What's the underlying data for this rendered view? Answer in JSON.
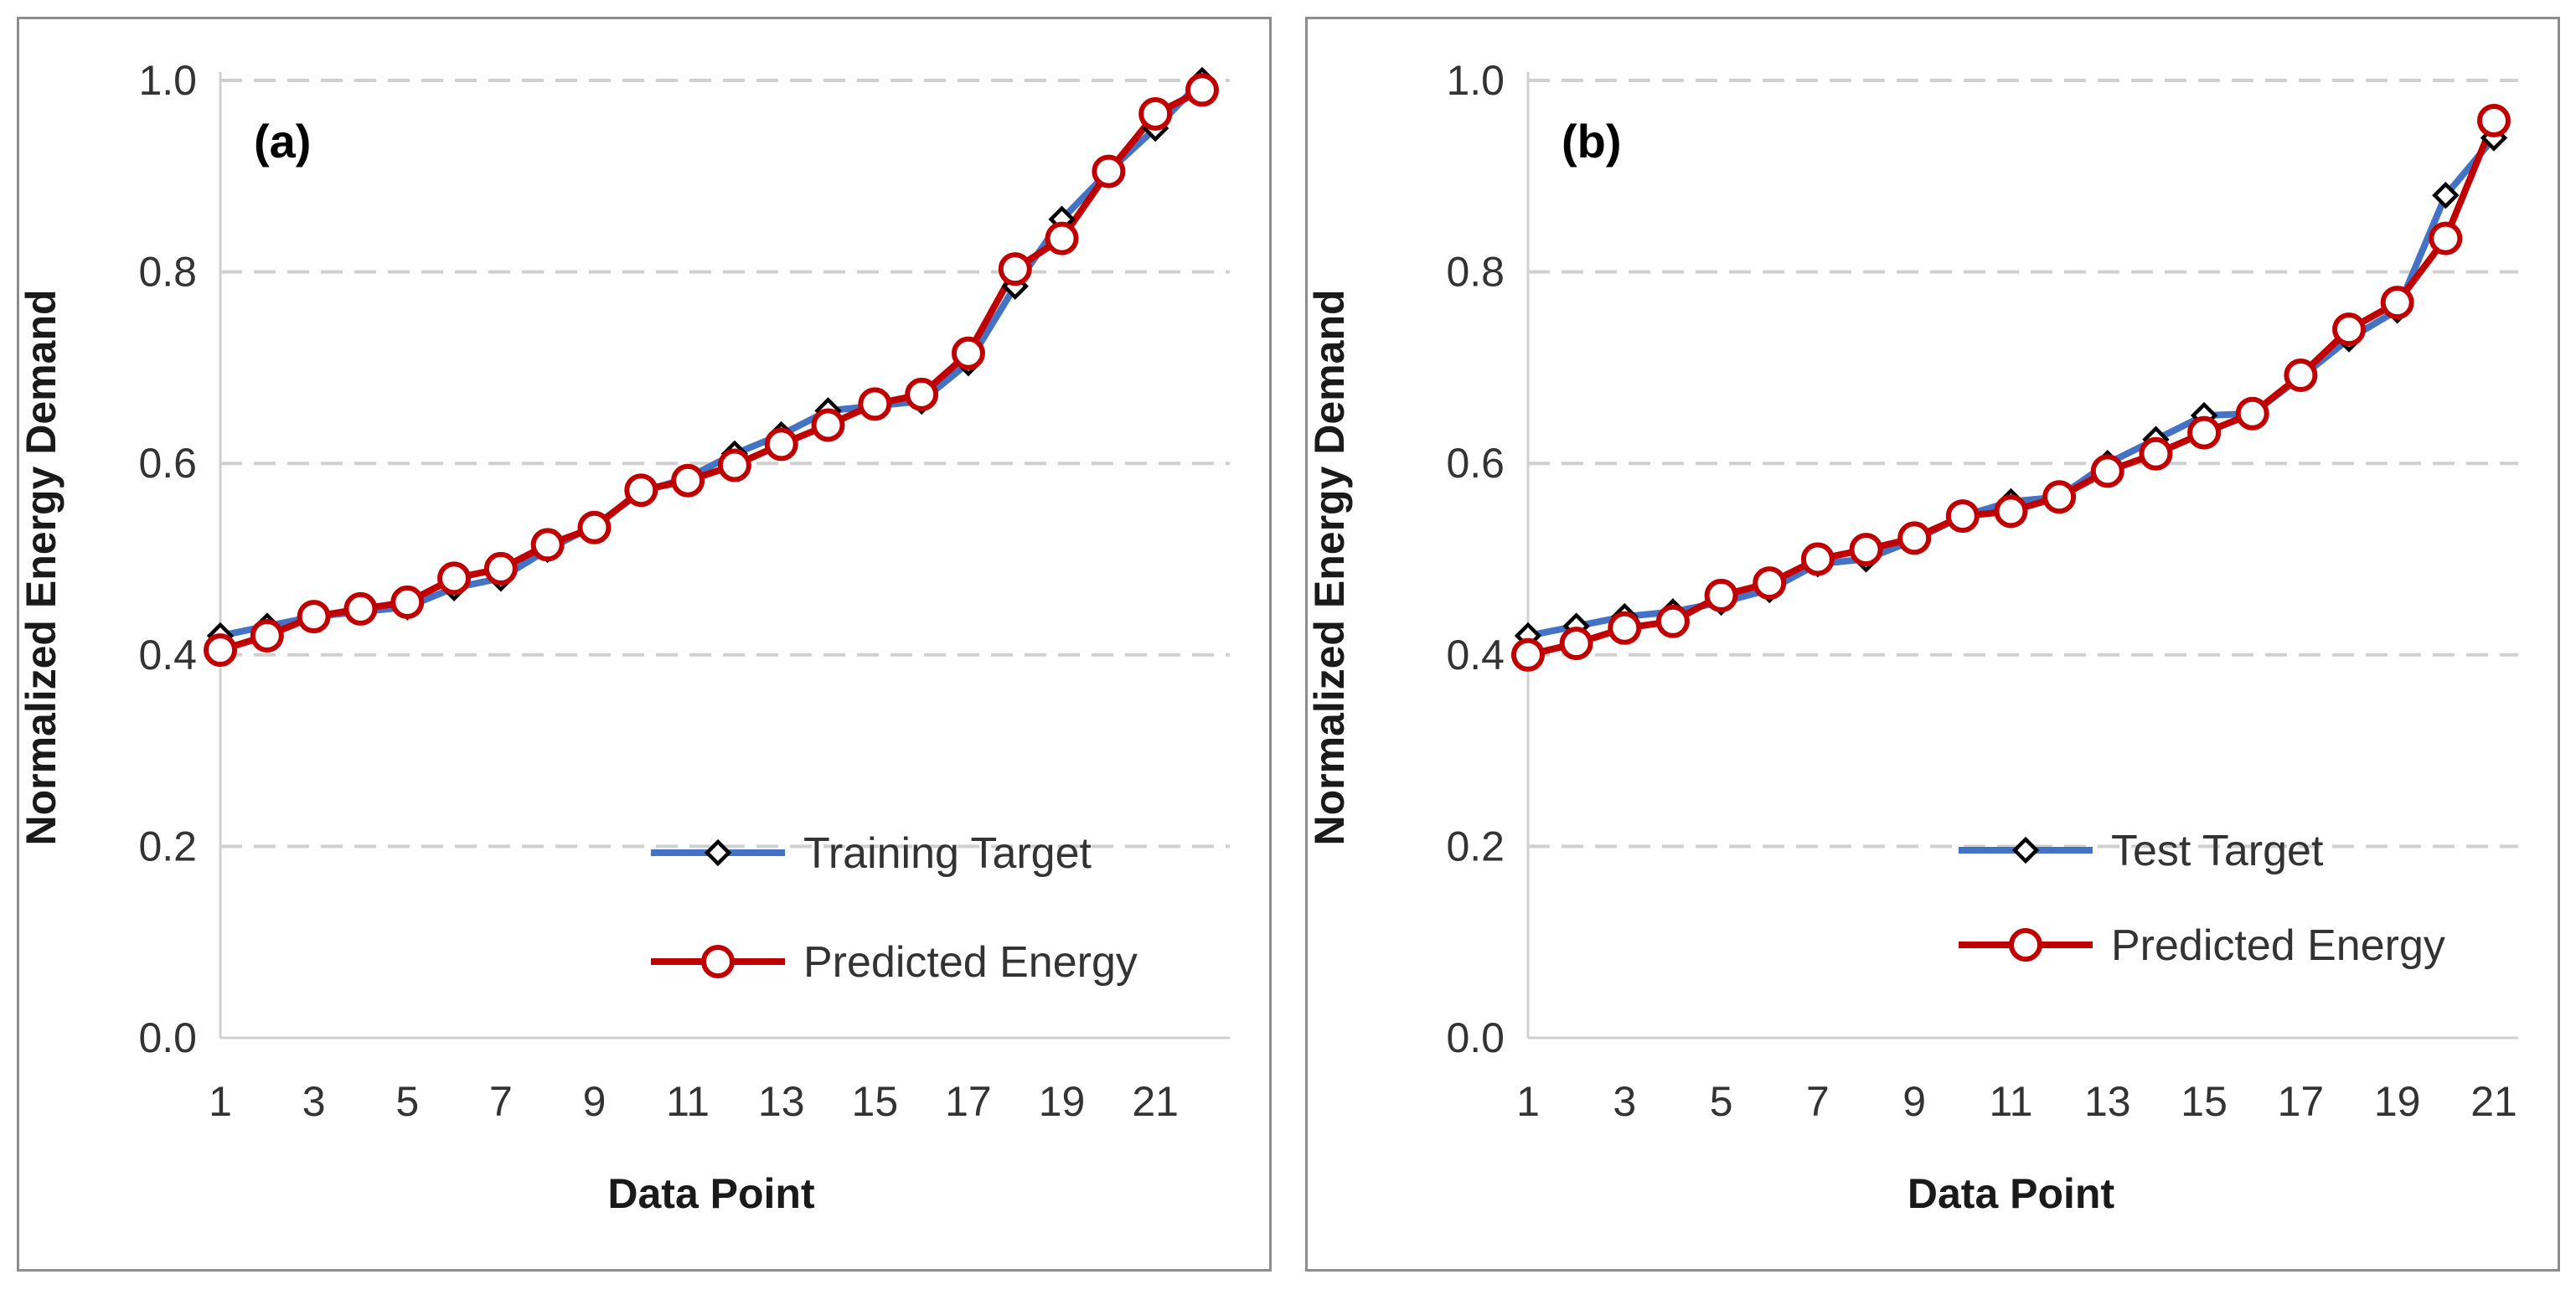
{
  "chart_data": [
    {
      "type": "line",
      "panel_label": "(a)",
      "xlabel": "Data Point",
      "ylabel": "Normalized Energy Demand",
      "ylim": [
        0.0,
        1.0
      ],
      "yticks": [
        "0.0",
        "0.2",
        "0.4",
        "0.6",
        "0.8",
        "1.0"
      ],
      "xlim": [
        1,
        22
      ],
      "xticks": [
        "1",
        "3",
        "5",
        "7",
        "9",
        "11",
        "13",
        "15",
        "17",
        "19",
        "21"
      ],
      "grid": "horizontal-dashed",
      "legend_position": "bottom-right",
      "colors": {
        "target": "#4472c4",
        "predicted": "#c00000",
        "target_marker": "#000000"
      },
      "series": [
        {
          "name": "Training Target",
          "marker": "diamond",
          "x": [
            1,
            2,
            3,
            4,
            5,
            6,
            7,
            8,
            9,
            10,
            11,
            12,
            13,
            14,
            15,
            16,
            17,
            18,
            19,
            20,
            21,
            22
          ],
          "values": [
            0.42,
            0.43,
            0.44,
            0.445,
            0.45,
            0.47,
            0.48,
            0.51,
            0.535,
            0.57,
            0.585,
            0.61,
            0.63,
            0.655,
            0.66,
            0.665,
            0.705,
            0.785,
            0.855,
            0.905,
            0.95,
            1.0
          ]
        },
        {
          "name": "Predicted Energy",
          "marker": "circle",
          "x": [
            1,
            2,
            3,
            4,
            5,
            6,
            7,
            8,
            9,
            10,
            11,
            12,
            13,
            14,
            15,
            16,
            17,
            18,
            19,
            20,
            21,
            22
          ],
          "values": [
            0.405,
            0.42,
            0.44,
            0.448,
            0.455,
            0.48,
            0.49,
            0.515,
            0.533,
            0.572,
            0.582,
            0.598,
            0.62,
            0.64,
            0.662,
            0.672,
            0.715,
            0.803,
            0.835,
            0.905,
            0.965,
            0.99
          ]
        }
      ]
    },
    {
      "type": "line",
      "panel_label": "(b)",
      "xlabel": "Data Point",
      "ylabel": "Normalized Energy Demand",
      "ylim": [
        0.0,
        1.0
      ],
      "yticks": [
        "0.0",
        "0.2",
        "0.4",
        "0.6",
        "0.8",
        "1.0"
      ],
      "xlim": [
        1,
        21
      ],
      "xticks": [
        "1",
        "3",
        "5",
        "7",
        "9",
        "11",
        "13",
        "15",
        "17",
        "19",
        "21"
      ],
      "grid": "horizontal-dashed",
      "legend_position": "bottom-right",
      "colors": {
        "target": "#4472c4",
        "predicted": "#c00000",
        "target_marker": "#000000"
      },
      "series": [
        {
          "name": "Test Target",
          "marker": "diamond",
          "x": [
            1,
            2,
            3,
            4,
            5,
            6,
            7,
            8,
            9,
            10,
            11,
            12,
            13,
            14,
            15,
            16,
            17,
            18,
            19,
            20,
            21
          ],
          "values": [
            0.42,
            0.43,
            0.44,
            0.445,
            0.455,
            0.468,
            0.495,
            0.5,
            0.52,
            0.545,
            0.56,
            0.565,
            0.6,
            0.625,
            0.65,
            0.652,
            0.69,
            0.73,
            0.76,
            0.88,
            0.94
          ]
        },
        {
          "name": "Predicted Energy",
          "marker": "circle",
          "x": [
            1,
            2,
            3,
            4,
            5,
            6,
            7,
            8,
            9,
            10,
            11,
            12,
            13,
            14,
            15,
            16,
            17,
            18,
            19,
            20,
            21
          ],
          "values": [
            0.4,
            0.412,
            0.428,
            0.435,
            0.462,
            0.475,
            0.5,
            0.51,
            0.522,
            0.545,
            0.55,
            0.565,
            0.592,
            0.61,
            0.632,
            0.652,
            0.692,
            0.74,
            0.768,
            0.835,
            0.958
          ]
        }
      ]
    }
  ]
}
